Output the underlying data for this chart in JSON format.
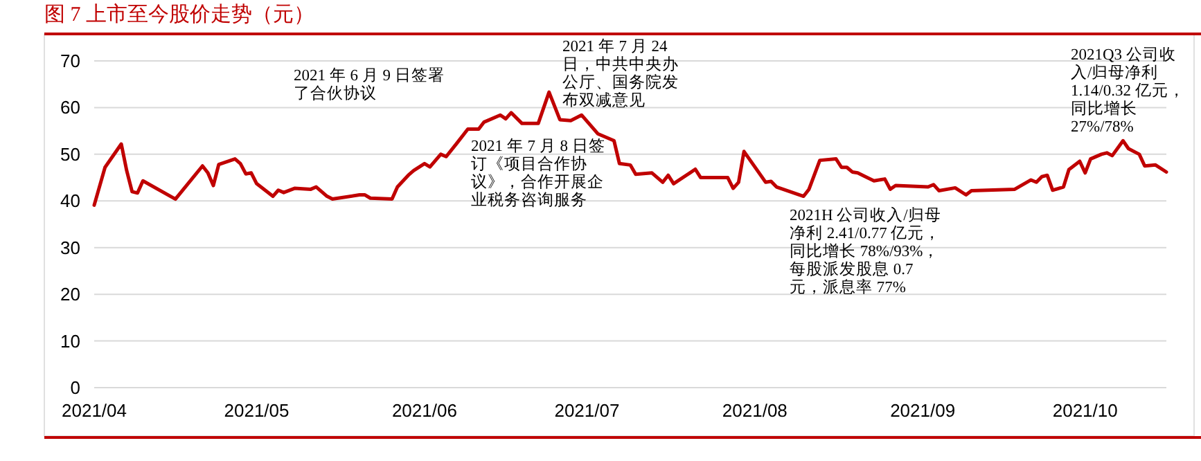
{
  "chart_data": {
    "type": "line",
    "title": "图 7 上市至今股价走势（元）",
    "x": [
      "2021-04-01",
      "2021-04-03",
      "2021-04-06",
      "2021-04-07",
      "2021-04-08",
      "2021-04-09",
      "2021-04-10",
      "2021-04-16",
      "2021-04-21",
      "2021-04-22",
      "2021-04-23",
      "2021-04-24",
      "2021-04-27",
      "2021-04-28",
      "2021-04-29",
      "2021-04-30",
      "2021-05-01",
      "2021-05-04",
      "2021-05-05",
      "2021-05-06",
      "2021-05-08",
      "2021-05-11",
      "2021-05-12",
      "2021-05-14",
      "2021-05-15",
      "2021-05-20",
      "2021-05-21",
      "2021-05-22",
      "2021-05-26",
      "2021-05-27",
      "2021-05-29",
      "2021-05-30",
      "2021-06-01",
      "2021-06-02",
      "2021-06-04",
      "2021-06-05",
      "2021-06-07",
      "2021-06-09",
      "2021-06-11",
      "2021-06-12",
      "2021-06-15",
      "2021-06-16",
      "2021-06-17",
      "2021-06-19",
      "2021-06-22",
      "2021-06-24",
      "2021-06-26",
      "2021-06-28",
      "2021-06-30",
      "2021-07-03",
      "2021-07-06",
      "2021-07-07",
      "2021-07-09",
      "2021-07-10",
      "2021-07-13",
      "2021-07-14",
      "2021-07-15",
      "2021-07-16",
      "2021-07-17",
      "2021-07-20",
      "2021-07-21",
      "2021-07-22",
      "2021-07-27",
      "2021-07-28",
      "2021-07-29",
      "2021-07-30",
      "2021-08-03",
      "2021-08-04",
      "2021-08-05",
      "2021-08-10",
      "2021-08-11",
      "2021-08-13",
      "2021-08-16",
      "2021-08-17",
      "2021-08-18",
      "2021-08-19",
      "2021-08-20",
      "2021-08-23",
      "2021-08-25",
      "2021-08-26",
      "2021-08-27",
      "2021-09-02",
      "2021-09-03",
      "2021-09-04",
      "2021-09-07",
      "2021-09-09",
      "2021-09-10",
      "2021-09-18",
      "2021-09-21",
      "2021-09-22",
      "2021-09-23",
      "2021-09-24",
      "2021-09-25",
      "2021-09-27",
      "2021-09-28",
      "2021-09-30",
      "2021-10-01",
      "2021-10-02",
      "2021-10-04",
      "2021-10-05",
      "2021-10-06",
      "2021-10-08",
      "2021-10-09",
      "2021-10-11",
      "2021-10-12",
      "2021-10-14",
      "2021-10-16"
    ],
    "series": [
      {
        "color": "#c00000",
        "values": [
          39.1,
          47.2,
          52.2,
          46.5,
          42.0,
          41.7,
          44.3,
          40.4,
          47.5,
          46.0,
          43.3,
          47.8,
          49.0,
          48.0,
          45.8,
          46.0,
          43.7,
          41.0,
          42.3,
          41.8,
          42.7,
          42.5,
          43.0,
          41.0,
          40.4,
          41.3,
          41.3,
          40.6,
          40.4,
          43.0,
          45.5,
          46.5,
          48.0,
          47.3,
          50.0,
          49.5,
          52.4,
          55.4,
          55.4,
          56.9,
          58.4,
          57.6,
          58.9,
          56.6,
          56.6,
          63.3,
          57.4,
          57.2,
          58.4,
          54.4,
          52.9,
          48.0,
          47.7,
          45.7,
          46.0,
          45.0,
          44.0,
          45.5,
          43.7,
          46.0,
          46.8,
          45.0,
          45.0,
          42.7,
          44.0,
          50.6,
          44.0,
          44.2,
          43.0,
          41.0,
          42.5,
          48.7,
          49.0,
          47.2,
          47.2,
          46.2,
          46.0,
          44.3,
          44.7,
          42.5,
          43.3,
          43.0,
          43.5,
          42.2,
          42.8,
          41.3,
          42.2,
          42.5,
          44.5,
          44.0,
          45.2,
          45.5,
          42.3,
          43.0,
          46.7,
          48.5,
          46.0,
          49.0,
          50.0,
          50.3,
          49.7,
          52.9,
          51.2,
          50.0,
          47.5,
          47.7,
          46.2
        ]
      }
    ],
    "xlim": [
      "2021-04-01",
      "2021-10-16"
    ],
    "xticks": [
      {
        "value": "2021-04-01",
        "label": "2021/04"
      },
      {
        "value": "2021-05-01",
        "label": "2021/05"
      },
      {
        "value": "2021-06-01",
        "label": "2021/06"
      },
      {
        "value": "2021-07-01",
        "label": "2021/07"
      },
      {
        "value": "2021-08-01",
        "label": "2021/08"
      },
      {
        "value": "2021-09-01",
        "label": "2021/09"
      },
      {
        "value": "2021-10-01",
        "label": "2021/10"
      }
    ],
    "ylim": [
      0,
      70
    ],
    "yticks": [
      0,
      10,
      20,
      30,
      40,
      50,
      60,
      70
    ],
    "grid": "y",
    "marker": "none",
    "line_style": "solid",
    "annotations": [
      "2021 年 6 月 9 日签署了合伙协议",
      "2021 年 7 月 8 日签订《项目合作协议》，合作开展企业税务咨询服务",
      "2021 年 7 月 24 日，中共中央办公厅、国务院发布双减意见",
      "2021H 公司收入/归母净利 2.41/0.77 亿元，同比增长 78%/93%，每股派发股息 0.7 元，派息率 77%",
      "2021Q3 公司收入/归母净利 1.14/0.32 亿元，同比增长 27%/78%"
    ]
  }
}
